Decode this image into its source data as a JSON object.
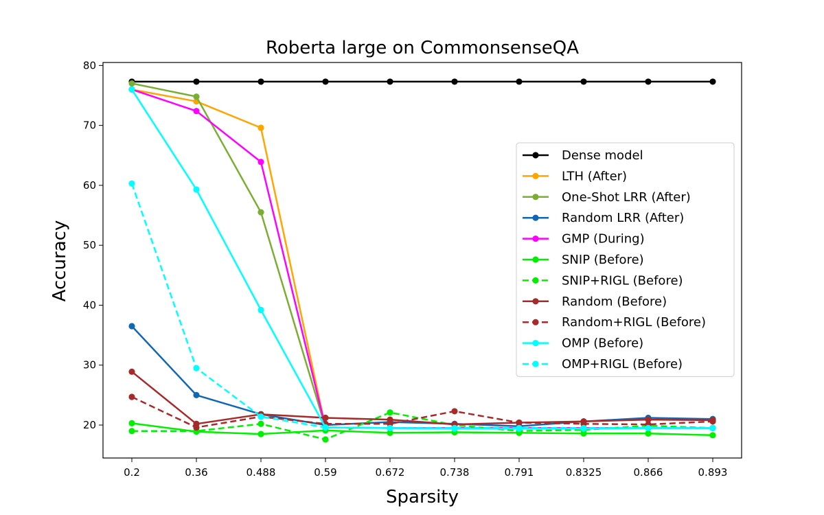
{
  "chart_data": {
    "type": "line",
    "title": "Roberta large on CommonsenseQA",
    "xlabel": "Sparsity",
    "ylabel": "Accuracy",
    "categories": [
      "0.2",
      "0.36",
      "0.488",
      "0.59",
      "0.672",
      "0.738",
      "0.791",
      "0.8325",
      "0.866",
      "0.893"
    ],
    "ylim": [
      14.5,
      80.5
    ],
    "yticks": [
      20,
      30,
      40,
      50,
      60,
      70,
      80
    ],
    "grid": false,
    "legend_position": "center-right",
    "series": [
      {
        "name": "Dense model",
        "color": "#000000",
        "dashed": false,
        "values": [
          77.3,
          77.3,
          77.3,
          77.3,
          77.3,
          77.3,
          77.3,
          77.3,
          77.3,
          77.3
        ]
      },
      {
        "name": "LTH (After)",
        "color": "#FFA500",
        "dashed": false,
        "values": [
          76.0,
          74.0,
          69.6,
          19.6,
          19.5,
          19.5,
          19.5,
          19.5,
          19.5,
          19.5
        ]
      },
      {
        "name": "One-Shot LRR (After)",
        "color": "#7AAE33",
        "dashed": false,
        "values": [
          77.0,
          74.8,
          55.5,
          19.6,
          19.5,
          19.5,
          19.5,
          19.5,
          19.5,
          19.5
        ]
      },
      {
        "name": "Random LRR (After)",
        "color": "#1167B1",
        "dashed": false,
        "values": [
          36.5,
          25.0,
          21.8,
          20.0,
          20.5,
          20.2,
          19.8,
          20.6,
          21.2,
          21.0
        ]
      },
      {
        "name": "GMP (During)",
        "color": "#FF00FF",
        "dashed": false,
        "values": [
          76.0,
          72.4,
          63.9,
          19.6,
          19.5,
          19.5,
          19.5,
          19.5,
          19.5,
          19.5
        ]
      },
      {
        "name": "SNIP (Before)",
        "color": "#00EE00",
        "dashed": false,
        "values": [
          20.3,
          18.9,
          18.5,
          19.1,
          18.7,
          18.8,
          18.7,
          18.6,
          18.6,
          18.3
        ]
      },
      {
        "name": "SNIP+RIGL (Before)",
        "color": "#00EE00",
        "dashed": true,
        "values": [
          19.0,
          19.0,
          20.2,
          17.6,
          22.1,
          20.0,
          19.0,
          19.2,
          19.9,
          19.5
        ]
      },
      {
        "name": "Random (Before)",
        "color": "#A52A2A",
        "dashed": false,
        "values": [
          28.9,
          20.2,
          21.8,
          21.2,
          20.9,
          20.1,
          20.4,
          20.6,
          20.9,
          20.8
        ]
      },
      {
        "name": "Random+RIGL (Before)",
        "color": "#A52A2A",
        "dashed": true,
        "values": [
          24.7,
          19.6,
          21.4,
          20.2,
          20.2,
          22.3,
          20.4,
          20.2,
          20.1,
          20.6
        ]
      },
      {
        "name": "OMP (Before)",
        "color": "#00FFFF",
        "dashed": false,
        "values": [
          76.0,
          59.3,
          39.2,
          19.6,
          19.5,
          19.4,
          19.4,
          19.4,
          19.5,
          19.5
        ]
      },
      {
        "name": "OMP+RIGL (Before)",
        "color": "#00FFFF",
        "dashed": true,
        "values": [
          60.3,
          29.5,
          21.4,
          19.6,
          19.5,
          19.5,
          19.5,
          19.5,
          19.5,
          19.5
        ]
      }
    ]
  }
}
